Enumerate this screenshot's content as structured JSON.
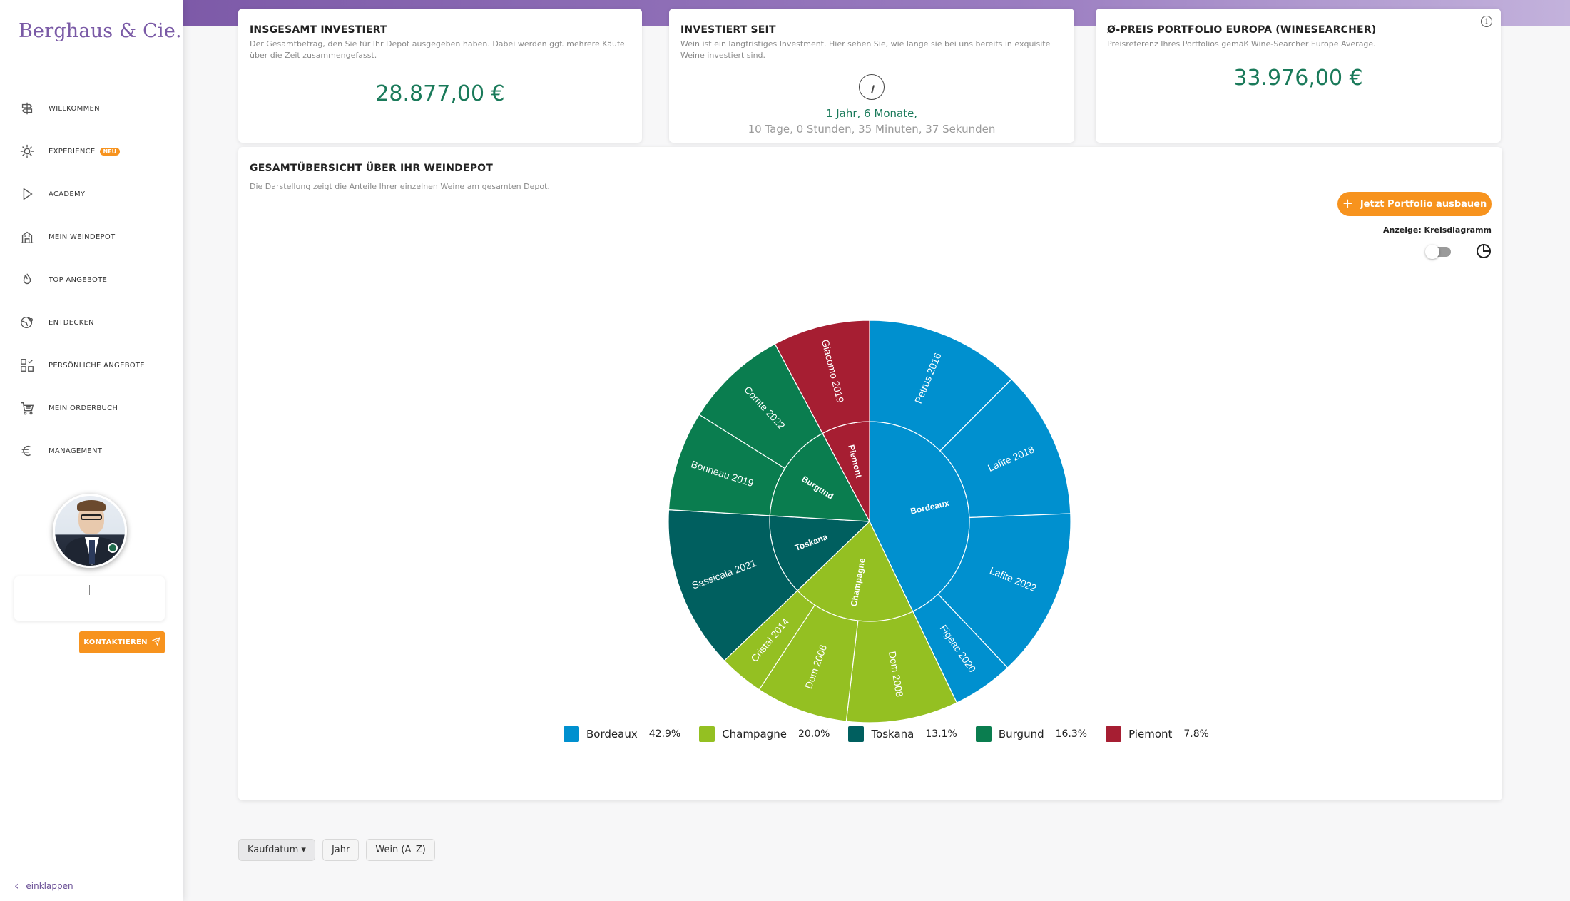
{
  "brand": {
    "name": "Berghaus & Cie."
  },
  "sidebar": {
    "items": [
      {
        "label": "WILLKOMMEN",
        "icon": "signpost-icon"
      },
      {
        "label": "EXPERIENCE",
        "icon": "sparkle-icon",
        "badge": "NEU"
      },
      {
        "label": "ACADEMY",
        "icon": "play-icon"
      },
      {
        "label": "MEIN WEINDEPOT",
        "icon": "building-icon"
      },
      {
        "label": "TOP ANGEBOTE",
        "icon": "flame-icon"
      },
      {
        "label": "ENTDECKEN",
        "icon": "globe-pin-icon"
      },
      {
        "label": "PERSÖNLICHE ANGEBOTE",
        "icon": "grid-check-icon"
      },
      {
        "label": "MEIN ORDERBUCH",
        "icon": "cart-icon"
      },
      {
        "label": "MANAGEMENT",
        "icon": "euro-icon"
      }
    ],
    "contact_button": "KONTAKTIEREN",
    "collapse_label": "einklappen"
  },
  "cards": {
    "invested": {
      "title": "INSGESAMT INVESTIERT",
      "subtitle": "Der Gesamtbetrag, den Sie für Ihr Depot ausgegeben haben. Dabei werden ggf. mehrere Käufe über die Zeit zusammengefasst.",
      "amount": "28.877,00 €"
    },
    "since": {
      "title": "INVESTIERT SEIT",
      "subtitle": "Wein ist ein langfristiges Investment. Hier sehen Sie, wie lange sie bei uns bereits in exquisite Weine investiert sind.",
      "main": "1 Jahr, 6 Monate,",
      "detail": "10 Tage, 0 Stunden, 35 Minuten, 37 Sekunden"
    },
    "price": {
      "title": "Ø-PREIS PORTFOLIO EUROPA (WINESEARCHER)",
      "subtitle": "Preisreferenz Ihres Portfolios gemäß Wine-Searcher Europe Average.",
      "amount": "33.976,00 €"
    }
  },
  "overview": {
    "title": "GESAMTÜBERSICHT ÜBER IHR WEINDEPOT",
    "subtitle": "Die Darstellung zeigt die Anteile Ihrer einzelnen Weine am gesamten Depot.",
    "cta": "Jetzt Portfolio ausbauen",
    "display_label": "Anzeige: Kreisdiagramm"
  },
  "chart_data": {
    "type": "pie",
    "subtype": "sunburst",
    "regions": [
      {
        "name": "Bordeaux",
        "share": 42.9,
        "color": "#0090cf",
        "wines": [
          {
            "name": "Petrus 2016",
            "share": 12.5
          },
          {
            "name": "Lafite 2018",
            "share": 11.9
          },
          {
            "name": "Lafite 2022",
            "share": 13.6
          },
          {
            "name": "Figeac 2020",
            "share": 4.9
          }
        ]
      },
      {
        "name": "Champagne",
        "share": 20.0,
        "color": "#94c022",
        "wines": [
          {
            "name": "Dom 2008",
            "share": 9.0
          },
          {
            "name": "Dom 2006",
            "share": 7.4
          },
          {
            "name": "Cristal 2014",
            "share": 3.6
          }
        ]
      },
      {
        "name": "Toskana",
        "share": 13.1,
        "color": "#005f5f",
        "wines": [
          {
            "name": "Sassicaia 2021",
            "share": 13.1
          }
        ]
      },
      {
        "name": "Burgund",
        "share": 16.3,
        "color": "#0a7d4f",
        "wines": [
          {
            "name": "Bonneau 2019",
            "share": 8.0
          },
          {
            "name": "Comte 2022",
            "share": 8.3
          }
        ]
      },
      {
        "name": "Piemont",
        "share": 7.8,
        "color": "#a61e32",
        "wines": [
          {
            "name": "Giacomo 2019",
            "share": 7.8
          }
        ]
      }
    ],
    "legend": [
      {
        "name": "Bordeaux",
        "pct": "42.9%"
      },
      {
        "name": "Champagne",
        "pct": "20.0%"
      },
      {
        "name": "Toskana",
        "pct": "13.1%"
      },
      {
        "name": "Burgund",
        "pct": "16.3%"
      },
      {
        "name": "Piemont",
        "pct": "7.8%"
      }
    ]
  },
  "filters": [
    "Kaufdatum ▾",
    "Jahr",
    "Wein (A–Z)"
  ]
}
